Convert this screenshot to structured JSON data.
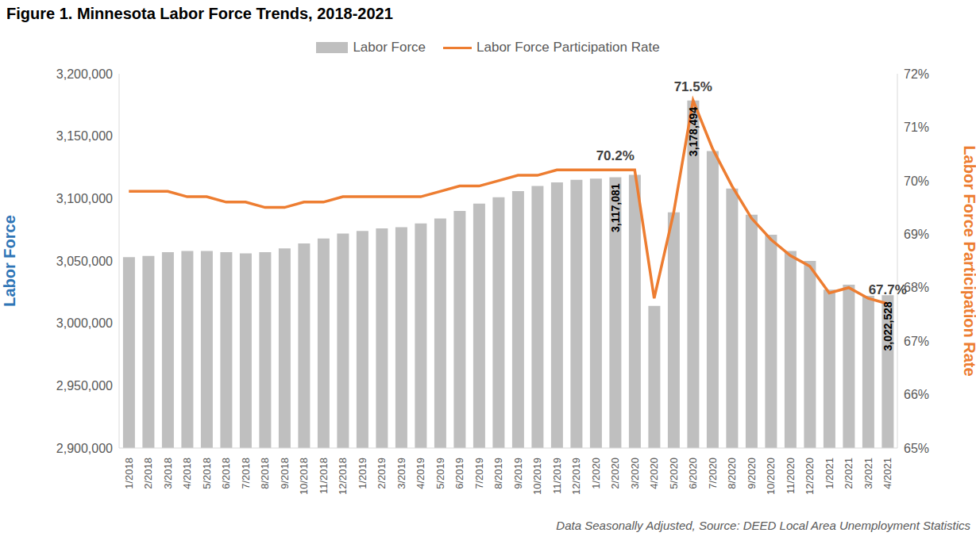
{
  "chart_data": {
    "type": "bar",
    "title": "Figure 1. Minnesota Labor Force Trends, 2018-2021",
    "source": "Data Seasonally Adjusted, Source: DEED Local Area Unemployment Statistics",
    "y_label": "Labor Force",
    "y2_label": "Labor Force Participation Rate",
    "legend": "top",
    "grid": false,
    "categories": [
      "1/2018",
      "2/2018",
      "3/2018",
      "4/2018",
      "5/2018",
      "6/2018",
      "7/2018",
      "8/2018",
      "9/2018",
      "10/2018",
      "11/2018",
      "12/2018",
      "1/2019",
      "2/2019",
      "3/2019",
      "4/2019",
      "5/2019",
      "6/2019",
      "7/2019",
      "8/2019",
      "9/2019",
      "10/2019",
      "11/2019",
      "12/2019",
      "1/2020",
      "2/2020",
      "3/2020",
      "4/2020",
      "5/2020",
      "6/2020",
      "7/2020",
      "8/2020",
      "9/2020",
      "10/2020",
      "11/2020",
      "12/2020",
      "1/2021",
      "2/2021",
      "3/2021",
      "4/2021"
    ],
    "series": [
      {
        "name": "Labor Force",
        "type": "bar",
        "color": "#bfbfbf",
        "data_labels": true,
        "values": [
          3053000,
          3054000,
          3057000,
          3058000,
          3058000,
          3057000,
          3056000,
          3057000,
          3060000,
          3064000,
          3068000,
          3072000,
          3074000,
          3076000,
          3077000,
          3080000,
          3084000,
          3090000,
          3096000,
          3101000,
          3106000,
          3110000,
          3113000,
          3115000,
          3116000,
          3117081,
          3119000,
          3014000,
          3089000,
          3178494,
          3138000,
          3108000,
          3087000,
          3071000,
          3058000,
          3050000,
          3027000,
          3031000,
          3022000,
          3022528
        ],
        "value_labels": [
          null,
          null,
          null,
          null,
          null,
          null,
          null,
          null,
          null,
          null,
          null,
          null,
          null,
          null,
          null,
          null,
          null,
          null,
          null,
          null,
          null,
          null,
          null,
          null,
          null,
          "3,117,081",
          null,
          null,
          null,
          "3,178,494",
          null,
          null,
          null,
          null,
          null,
          null,
          null,
          null,
          null,
          "3,022,528"
        ]
      },
      {
        "name": "Labor Force Participation Rate",
        "type": "line",
        "color": "#ed7d31",
        "axis": "y2",
        "data_labels": true,
        "values": [
          69.8,
          69.8,
          69.8,
          69.7,
          69.7,
          69.6,
          69.6,
          69.5,
          69.5,
          69.6,
          69.6,
          69.7,
          69.7,
          69.7,
          69.7,
          69.7,
          69.8,
          69.9,
          69.9,
          70.0,
          70.1,
          70.1,
          70.2,
          70.2,
          70.2,
          70.2,
          70.2,
          67.8,
          69.4,
          71.5,
          70.6,
          69.9,
          69.3,
          68.9,
          68.6,
          68.4,
          67.9,
          68.0,
          67.8,
          67.7
        ],
        "value_labels": [
          null,
          null,
          null,
          null,
          null,
          null,
          null,
          null,
          null,
          null,
          null,
          null,
          null,
          null,
          null,
          null,
          null,
          null,
          null,
          null,
          null,
          null,
          null,
          null,
          null,
          "70.2%",
          null,
          null,
          null,
          "71.5%",
          null,
          null,
          null,
          null,
          null,
          null,
          null,
          null,
          null,
          "67.7%"
        ]
      }
    ],
    "ylim": [
      2900000,
      3200000
    ],
    "yticks": [
      {
        "value": 2900000,
        "label": "2,900,000"
      },
      {
        "value": 2950000,
        "label": "2,950,000"
      },
      {
        "value": 3000000,
        "label": "3,000,000"
      },
      {
        "value": 3050000,
        "label": "3,050,000"
      },
      {
        "value": 3100000,
        "label": "3,100,000"
      },
      {
        "value": 3150000,
        "label": "3,150,000"
      },
      {
        "value": 3200000,
        "label": "3,200,000"
      }
    ],
    "y2lim": [
      65,
      72
    ],
    "y2ticks": [
      {
        "value": 65,
        "label": "65%"
      },
      {
        "value": 66,
        "label": "66%"
      },
      {
        "value": 67,
        "label": "67%"
      },
      {
        "value": 68,
        "label": "68%"
      },
      {
        "value": 69,
        "label": "69%"
      },
      {
        "value": 70,
        "label": "70%"
      },
      {
        "value": 71,
        "label": "71%"
      },
      {
        "value": 72,
        "label": "72%"
      }
    ]
  }
}
